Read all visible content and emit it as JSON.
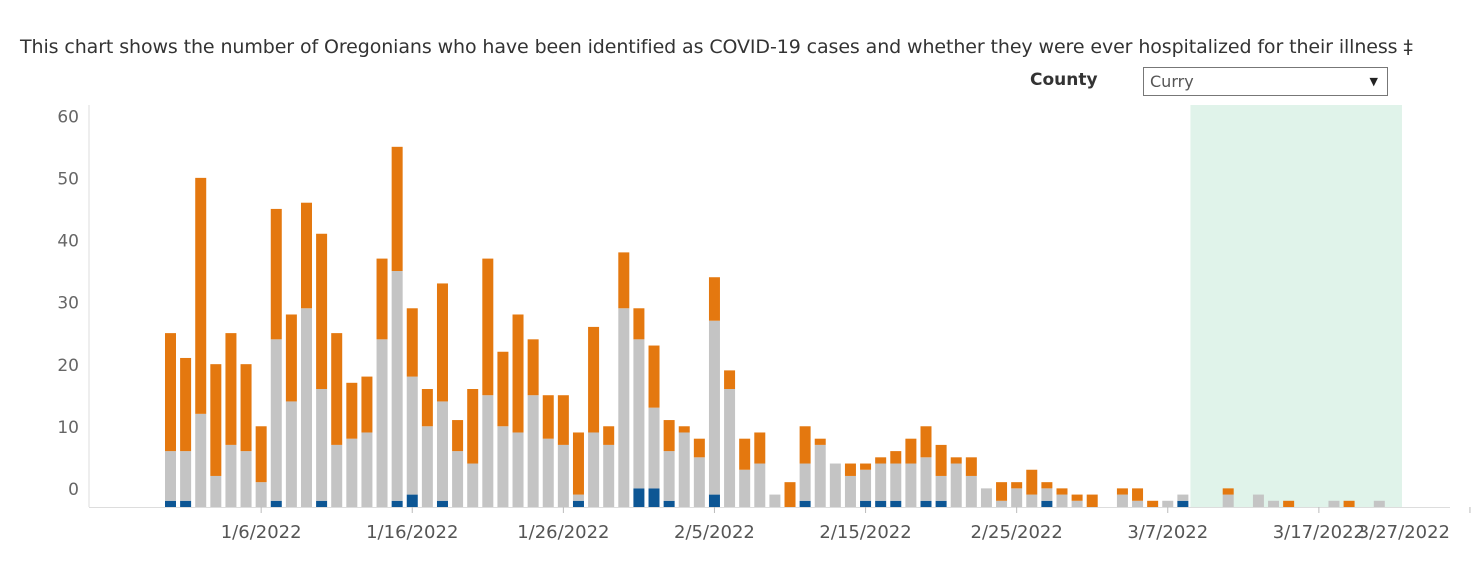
{
  "title": "This chart shows the number of Oregonians who have been identified as COVID-19 cases and whether they were ever hospitalized for their illness ‡",
  "filter": {
    "label": "County",
    "selected": "Curry",
    "caret_icon": "triangle-down"
  },
  "colors": {
    "hospitalized": "#0d5694",
    "not_hospitalized": "#c4c4c4",
    "unknown": "#e4780f",
    "highlight": "#e0f3ea",
    "axis": "#dddddd"
  },
  "chart_data": {
    "type": "bar",
    "stacked": true,
    "ylim": [
      0,
      60
    ],
    "yticks": [
      0,
      10,
      20,
      30,
      40,
      50,
      60
    ],
    "xticks": [
      "1/6/2022",
      "1/16/2022",
      "1/26/2022",
      "2/5/2022",
      "2/15/2022",
      "2/25/2022",
      "3/7/2022",
      "3/17/2022",
      "3/27/2022"
    ],
    "x_start": "2021-12-31",
    "xtick_dates": [
      "2022-01-06",
      "2022-01-16",
      "2022-01-26",
      "2022-02-05",
      "2022-02-15",
      "2022-02-25",
      "2022-03-07",
      "2022-03-17",
      "2022-03-27"
    ],
    "highlight_range": [
      "2022-03-09",
      "2022-03-22"
    ],
    "series_colors": [
      "hospitalized",
      "not_hospitalized",
      "unknown"
    ],
    "values": [
      [
        1,
        8,
        19
      ],
      [
        1,
        8,
        15
      ],
      [
        0,
        15,
        38
      ],
      [
        0,
        5,
        18
      ],
      [
        0,
        10,
        18
      ],
      [
        0,
        9,
        14
      ],
      [
        0,
        4,
        9
      ],
      [
        1,
        26,
        21
      ],
      [
        0,
        17,
        14
      ],
      [
        0,
        32,
        17
      ],
      [
        1,
        18,
        25
      ],
      [
        0,
        10,
        18
      ],
      [
        0,
        11,
        9
      ],
      [
        0,
        12,
        9
      ],
      [
        0,
        27,
        13
      ],
      [
        1,
        37,
        20
      ],
      [
        2,
        19,
        11
      ],
      [
        0,
        13,
        6
      ],
      [
        1,
        16,
        19
      ],
      [
        0,
        9,
        5
      ],
      [
        0,
        7,
        12
      ],
      [
        0,
        18,
        22
      ],
      [
        0,
        13,
        12
      ],
      [
        0,
        12,
        19
      ],
      [
        0,
        18,
        9
      ],
      [
        0,
        11,
        7
      ],
      [
        0,
        10,
        8
      ],
      [
        1,
        1,
        10
      ],
      [
        0,
        12,
        17
      ],
      [
        0,
        10,
        3
      ],
      [
        0,
        32,
        9
      ],
      [
        3,
        24,
        5
      ],
      [
        3,
        13,
        10
      ],
      [
        1,
        8,
        5
      ],
      [
        0,
        12,
        1
      ],
      [
        0,
        8,
        3
      ],
      [
        2,
        28,
        7
      ],
      [
        0,
        19,
        3
      ],
      [
        0,
        6,
        5
      ],
      [
        0,
        7,
        5
      ],
      [
        0,
        2,
        0
      ],
      [
        0,
        0,
        4
      ],
      [
        1,
        6,
        6
      ],
      [
        0,
        10,
        1
      ],
      [
        0,
        7,
        0
      ],
      [
        0,
        5,
        2
      ],
      [
        1,
        5,
        1
      ],
      [
        1,
        6,
        1
      ],
      [
        1,
        6,
        2
      ],
      [
        0,
        7,
        4
      ],
      [
        1,
        7,
        5
      ],
      [
        1,
        4,
        5
      ],
      [
        0,
        7,
        1
      ],
      [
        0,
        5,
        3
      ],
      [
        0,
        3,
        0
      ],
      [
        0,
        1,
        3
      ],
      [
        0,
        3,
        1
      ],
      [
        0,
        2,
        4
      ],
      [
        1,
        2,
        1
      ],
      [
        0,
        2,
        1
      ],
      [
        0,
        1,
        1
      ],
      [
        0,
        0,
        2
      ],
      [
        0,
        0,
        0
      ],
      [
        0,
        2,
        1
      ],
      [
        0,
        1,
        2
      ],
      [
        0,
        0,
        1
      ],
      [
        0,
        1,
        0
      ],
      [
        1,
        1,
        0
      ],
      [
        0,
        0,
        0
      ],
      [
        0,
        0,
        0
      ],
      [
        0,
        2,
        1
      ],
      [
        0,
        0,
        0
      ],
      [
        0,
        2,
        0
      ],
      [
        0,
        1,
        0
      ],
      [
        0,
        0,
        1
      ],
      [
        0,
        0,
        0
      ],
      [
        0,
        0,
        0
      ],
      [
        0,
        1,
        0
      ],
      [
        0,
        0,
        1
      ],
      [
        0,
        0,
        0
      ],
      [
        0,
        1,
        0
      ]
    ]
  }
}
